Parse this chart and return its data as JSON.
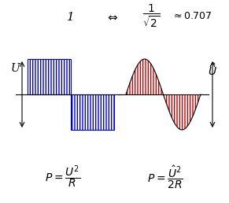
{
  "bg_color": "#ffffff",
  "square_color": "#0000cc",
  "sine_color": "#cc0000",
  "figsize": [
    2.91,
    2.58
  ],
  "dpi": 100
}
